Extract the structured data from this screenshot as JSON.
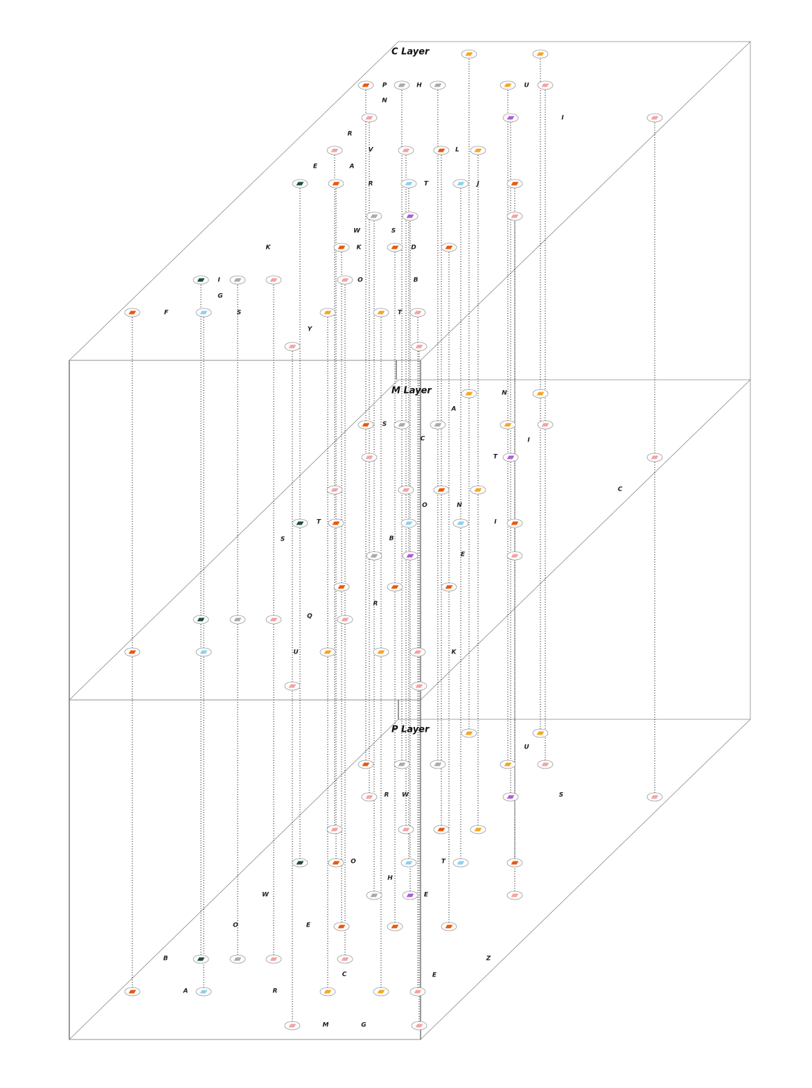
{
  "layers": [
    {
      "title": "C Layer",
      "labels": [
        "P",
        "H",
        "U",
        "N",
        "I",
        "R",
        "V",
        "L",
        "E",
        "A",
        "R",
        "T",
        "J",
        "W",
        "S",
        "K",
        "K",
        "D",
        "I",
        "O",
        "B",
        "G",
        "F",
        "S",
        "T",
        "Y"
      ]
    },
    {
      "title": "M Layer",
      "labels": [
        "S",
        "A",
        "N",
        "C",
        "I",
        "T",
        "C",
        "O",
        "N",
        "T",
        "I",
        "S",
        "B",
        "E",
        "R",
        "Q",
        "U",
        "K"
      ]
    },
    {
      "title": "P Layer",
      "labels": [
        "U",
        "R",
        "W",
        "S",
        "O",
        "T",
        "H",
        "W",
        "E",
        "O",
        "E",
        "B",
        "Z",
        "C",
        "E",
        "A",
        "R",
        "M",
        "G"
      ]
    }
  ]
}
